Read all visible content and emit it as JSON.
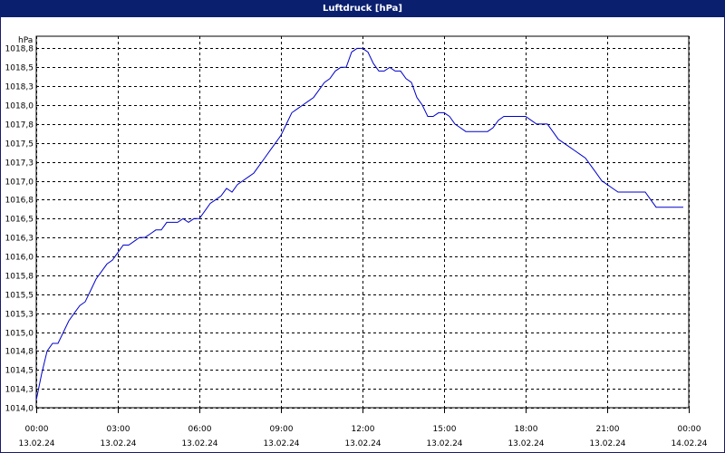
{
  "window": {
    "title": "Luftdruck [hPa]"
  },
  "colors": {
    "titlebar": "#0a1f6e",
    "line": "#0000cc",
    "grid": "#000000"
  },
  "chart_data": {
    "type": "line",
    "title": "Luftdruck [hPa]",
    "ylabel": "hPa",
    "xlabel": "",
    "ylim": [
      1014.0,
      1018.9
    ],
    "xlim": [
      0,
      24
    ],
    "grid": true,
    "y_ticks": [
      1014.0,
      1014.25,
      1014.5,
      1014.75,
      1015.0,
      1015.25,
      1015.5,
      1015.75,
      1016.0,
      1016.25,
      1016.5,
      1016.75,
      1017.0,
      1017.25,
      1017.5,
      1017.75,
      1018.0,
      1018.25,
      1018.5,
      1018.75
    ],
    "y_tick_labels": [
      "1014,0",
      "1014,3",
      "1014,5",
      "1014,8",
      "1015,0",
      "1015,3",
      "1015,5",
      "1015,8",
      "1016,0",
      "1016,3",
      "1016,5",
      "1016,8",
      "1017,0",
      "1017,3",
      "1017,5",
      "1017,8",
      "1018,0",
      "1018,3",
      "1018,5",
      "1018,8"
    ],
    "x_ticks": [
      0,
      3,
      6,
      9,
      12,
      15,
      18,
      21,
      24
    ],
    "x_tick_labels": [
      [
        "00:00",
        "13.02.24"
      ],
      [
        "03:00",
        "13.02.24"
      ],
      [
        "06:00",
        "13.02.24"
      ],
      [
        "09:00",
        "13.02.24"
      ],
      [
        "12:00",
        "13.02.24"
      ],
      [
        "15:00",
        "13.02.24"
      ],
      [
        "18:00",
        "13.02.24"
      ],
      [
        "21:00",
        "13.02.24"
      ],
      [
        "00:00",
        "14.02.24"
      ]
    ],
    "series": [
      {
        "x": [
          0.0,
          0.2,
          0.4,
          0.6,
          0.8,
          1.0,
          1.2,
          1.4,
          1.6,
          1.8,
          2.0,
          2.2,
          2.4,
          2.6,
          2.8,
          3.0,
          3.2,
          3.4,
          3.6,
          3.8,
          4.0,
          4.2,
          4.4,
          4.6,
          4.8,
          5.0,
          5.2,
          5.4,
          5.6,
          5.8,
          6.0,
          6.2,
          6.4,
          6.6,
          6.8,
          7.0,
          7.2,
          7.4,
          7.6,
          7.8,
          8.0,
          8.2,
          8.4,
          8.6,
          8.8,
          9.0,
          9.2,
          9.4,
          9.6,
          9.8,
          10.0,
          10.2,
          10.4,
          10.6,
          10.8,
          11.0,
          11.2,
          11.4,
          11.6,
          11.8,
          12.0,
          12.2,
          12.4,
          12.6,
          12.8,
          13.0,
          13.2,
          13.4,
          13.6,
          13.8,
          14.0,
          14.2,
          14.4,
          14.6,
          14.8,
          15.0,
          15.2,
          15.4,
          15.6,
          15.8,
          16.0,
          16.2,
          16.4,
          16.6,
          16.8,
          17.0,
          17.2,
          17.4,
          17.6,
          17.8,
          18.0,
          18.2,
          18.4,
          18.6,
          18.8,
          19.0,
          19.2,
          19.4,
          19.6,
          19.8,
          20.0,
          20.2,
          20.4,
          20.6,
          20.8,
          21.0,
          21.2,
          21.4,
          21.6,
          21.8,
          22.0,
          22.2,
          22.4,
          22.6,
          22.8,
          23.0,
          23.2,
          23.4,
          23.6,
          23.8
        ],
        "values": [
          1014.1,
          1014.45,
          1014.75,
          1014.85,
          1014.85,
          1015.0,
          1015.15,
          1015.25,
          1015.35,
          1015.4,
          1015.55,
          1015.7,
          1015.8,
          1015.9,
          1015.95,
          1016.05,
          1016.15,
          1016.15,
          1016.2,
          1016.25,
          1016.25,
          1016.3,
          1016.35,
          1016.35,
          1016.45,
          1016.45,
          1016.45,
          1016.5,
          1016.45,
          1016.5,
          1016.5,
          1016.6,
          1016.7,
          1016.75,
          1016.8,
          1016.9,
          1016.85,
          1016.95,
          1017.0,
          1017.05,
          1017.1,
          1017.2,
          1017.3,
          1017.4,
          1017.5,
          1017.6,
          1017.75,
          1017.9,
          1017.95,
          1018.0,
          1018.05,
          1018.1,
          1018.2,
          1018.3,
          1018.35,
          1018.45,
          1018.5,
          1018.5,
          1018.7,
          1018.75,
          1018.75,
          1018.7,
          1018.55,
          1018.45,
          1018.45,
          1018.5,
          1018.45,
          1018.45,
          1018.35,
          1018.3,
          1018.1,
          1018.0,
          1017.85,
          1017.85,
          1017.9,
          1017.9,
          1017.85,
          1017.75,
          1017.7,
          1017.65,
          1017.65,
          1017.65,
          1017.65,
          1017.65,
          1017.7,
          1017.8,
          1017.85,
          1017.85,
          1017.85,
          1017.85,
          1017.85,
          1017.8,
          1017.75,
          1017.75,
          1017.75,
          1017.65,
          1017.55,
          1017.5,
          1017.45,
          1017.4,
          1017.35,
          1017.3,
          1017.2,
          1017.1,
          1017.0,
          1016.95,
          1016.9,
          1016.85,
          1016.85,
          1016.85,
          1016.85,
          1016.85,
          1016.85,
          1016.75,
          1016.65,
          1016.65,
          1016.65,
          1016.65,
          1016.65,
          1016.65
        ]
      }
    ]
  }
}
